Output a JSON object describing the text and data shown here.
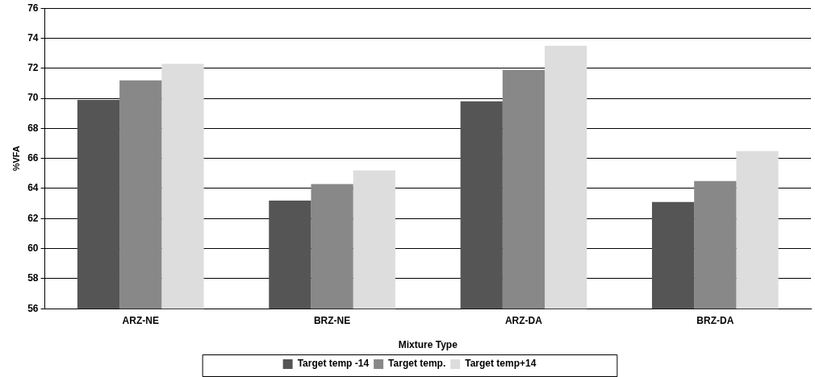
{
  "chart_data": {
    "type": "bar",
    "xlabel": "Mixture Type",
    "ylabel": "%VFA",
    "categories": [
      "ARZ-NE",
      "BRZ-NE",
      "ARZ-DA",
      "BRZ-DA"
    ],
    "series": [
      {
        "name": "Target temp -14",
        "color": "#555555",
        "values": [
          69.9,
          63.2,
          69.8,
          63.1
        ]
      },
      {
        "name": "Target temp.",
        "color": "#888888",
        "values": [
          71.2,
          64.3,
          71.9,
          64.5
        ]
      },
      {
        "name": "Target temp+14",
        "color": "#dddddd",
        "values": [
          72.3,
          65.2,
          73.5,
          66.5
        ]
      }
    ],
    "ylim": [
      56,
      76
    ],
    "yticks": [
      56,
      58,
      60,
      62,
      64,
      66,
      68,
      70,
      72,
      74,
      76
    ],
    "grid": "y",
    "legend": "bottom"
  }
}
